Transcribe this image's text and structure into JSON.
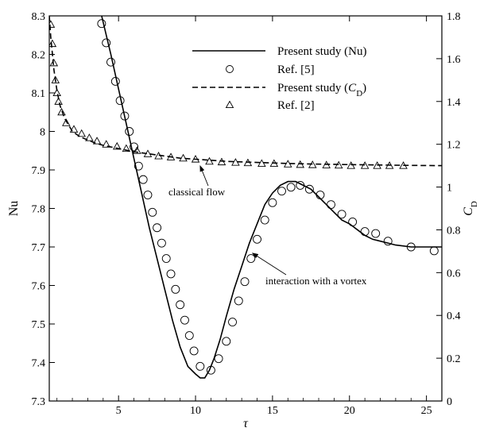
{
  "chart_data": {
    "type": "line",
    "xlabel": "τ",
    "ylabel_left": "Nu",
    "ylabel_right": "C_D",
    "xlim": [
      0.5,
      26
    ],
    "ylim_left": [
      7.3,
      8.3
    ],
    "ylim_right": [
      0,
      1.8
    ],
    "x_ticks": [
      "5",
      "10",
      "15",
      "20",
      "25"
    ],
    "y_ticks_left": [
      "7.3",
      "7.4",
      "7.5",
      "7.6",
      "7.7",
      "7.8",
      "7.9",
      "8",
      "8.1",
      "8.2",
      "8.3"
    ],
    "y_ticks_right": [
      "0",
      "0.2",
      "0.4",
      "0.6",
      "0.8",
      "1",
      "1.2",
      "1.4",
      "1.6",
      "1.8"
    ],
    "legend": {
      "position": "top-right",
      "entries": [
        {
          "label": "Present study (Nu)"
        },
        {
          "label": "Ref. [5]"
        },
        {
          "label_prefix": "Present study (",
          "label_italic": "C",
          "label_sub": "D",
          "label_suffix": ")"
        },
        {
          "label": "Ref. [2]"
        }
      ]
    },
    "annotations": [
      {
        "text": "classical flow",
        "target": [
          10.3,
          1.11
        ]
      },
      {
        "text": "interaction with a vortex",
        "target": [
          13.6,
          7.69
        ]
      }
    ],
    "series": [
      {
        "axis": "left",
        "style": "solid-line",
        "x": [
          3.9,
          4.5,
          5.0,
          5.5,
          6.0,
          6.5,
          7.0,
          7.5,
          8.0,
          8.5,
          9.0,
          9.5,
          10.0,
          10.3,
          10.6,
          10.9,
          11.2,
          11.6,
          12.0,
          12.5,
          13.0,
          13.5,
          14.0,
          14.5,
          15.0,
          15.5,
          16.0,
          16.5,
          17.0,
          17.5,
          18.0,
          18.5,
          19.0,
          19.5,
          20.0,
          20.5,
          21.0,
          21.5,
          22.0,
          23.0,
          24.0,
          25.0,
          26.0
        ],
        "y": [
          8.3,
          8.2,
          8.11,
          8.02,
          7.93,
          7.84,
          7.75,
          7.67,
          7.59,
          7.51,
          7.44,
          7.39,
          7.37,
          7.36,
          7.36,
          7.38,
          7.41,
          7.46,
          7.52,
          7.59,
          7.65,
          7.71,
          7.76,
          7.81,
          7.84,
          7.86,
          7.87,
          7.87,
          7.86,
          7.85,
          7.83,
          7.81,
          7.79,
          7.77,
          7.76,
          7.745,
          7.73,
          7.72,
          7.715,
          7.705,
          7.7,
          7.7,
          7.7
        ]
      },
      {
        "axis": "left",
        "style": "open-circles",
        "x": [
          3.9,
          4.2,
          4.5,
          4.8,
          5.1,
          5.4,
          5.7,
          6.0,
          6.3,
          6.6,
          6.9,
          7.2,
          7.5,
          7.8,
          8.1,
          8.4,
          8.7,
          9.0,
          9.3,
          9.6,
          9.9,
          10.3,
          11.0,
          11.5,
          12.0,
          12.4,
          12.8,
          13.2,
          13.6,
          14.0,
          14.5,
          15.0,
          15.6,
          16.2,
          16.8,
          17.4,
          18.1,
          18.8,
          19.5,
          20.2,
          21.0,
          21.7,
          22.5,
          24.0,
          25.5
        ],
        "y": [
          8.28,
          8.23,
          8.18,
          8.13,
          8.08,
          8.04,
          8.0,
          7.96,
          7.91,
          7.875,
          7.835,
          7.79,
          7.75,
          7.71,
          7.67,
          7.63,
          7.59,
          7.55,
          7.51,
          7.47,
          7.43,
          7.39,
          7.38,
          7.41,
          7.455,
          7.505,
          7.56,
          7.61,
          7.67,
          7.72,
          7.77,
          7.815,
          7.845,
          7.855,
          7.86,
          7.85,
          7.835,
          7.81,
          7.785,
          7.765,
          7.74,
          7.735,
          7.715,
          7.7,
          7.69
        ]
      },
      {
        "axis": "right",
        "style": "dashed-line",
        "x": [
          0.5,
          0.6,
          0.8,
          1.0,
          1.2,
          1.5,
          2.0,
          2.5,
          3.0,
          3.5,
          4.0,
          5.0,
          6.0,
          7.0,
          8.0,
          9.0,
          10.0,
          12.0,
          14.0,
          16.0,
          18.0,
          20.0,
          22.0,
          24.0,
          26.0
        ],
        "y": [
          1.8,
          1.7,
          1.55,
          1.45,
          1.38,
          1.32,
          1.26,
          1.235,
          1.22,
          1.205,
          1.195,
          1.18,
          1.165,
          1.155,
          1.145,
          1.135,
          1.13,
          1.12,
          1.115,
          1.11,
          1.107,
          1.105,
          1.103,
          1.101,
          1.1
        ]
      },
      {
        "axis": "right",
        "style": "open-triangles",
        "x": [
          0.6,
          0.7,
          0.8,
          0.9,
          1.0,
          1.1,
          1.3,
          1.6,
          2.1,
          2.6,
          3.1,
          3.6,
          4.2,
          4.9,
          5.5,
          6.2,
          6.9,
          7.6,
          8.4,
          9.2,
          10.0,
          10.9,
          11.7,
          12.6,
          13.4,
          14.3,
          15.1,
          16.0,
          16.8,
          17.6,
          18.5,
          19.3,
          20.1,
          21.0,
          21.8,
          22.6,
          23.5
        ],
        "y": [
          1.76,
          1.67,
          1.58,
          1.5,
          1.44,
          1.4,
          1.35,
          1.3,
          1.27,
          1.25,
          1.23,
          1.215,
          1.2,
          1.19,
          1.18,
          1.17,
          1.155,
          1.145,
          1.14,
          1.135,
          1.13,
          1.12,
          1.117,
          1.115,
          1.113,
          1.11,
          1.11,
          1.107,
          1.105,
          1.104,
          1.103,
          1.102,
          1.1,
          1.1,
          1.1,
          1.1,
          1.1
        ]
      }
    ]
  }
}
